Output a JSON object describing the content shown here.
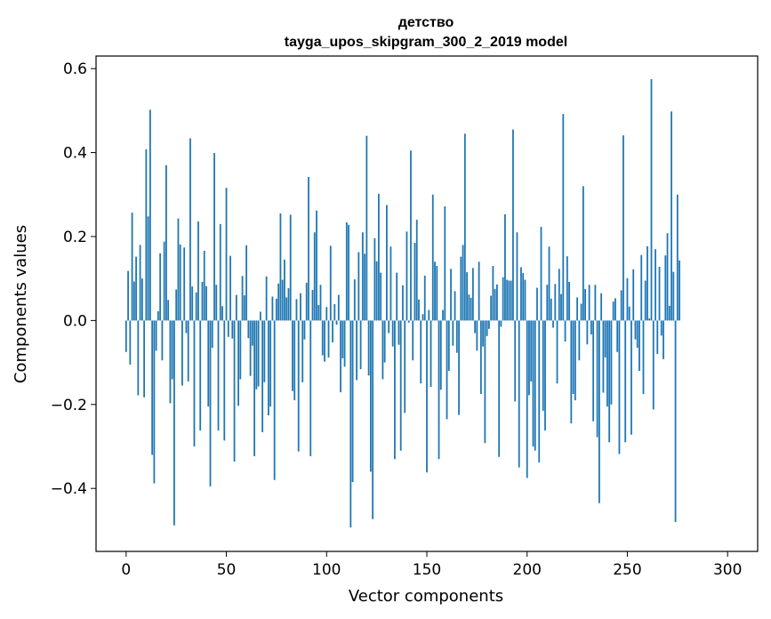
{
  "chart_data": {
    "type": "bar",
    "title_line1": "детство",
    "title_line2": "tayga_upos_skipgram_300_2_2019 model",
    "xlabel": "Vector components",
    "ylabel": "Components values",
    "xlim": [
      -15,
      315
    ],
    "ylim": [
      -0.55,
      0.63
    ],
    "xticks": [
      0,
      50,
      100,
      150,
      200,
      250,
      300
    ],
    "yticks": [
      -0.4,
      -0.2,
      0.0,
      0.2,
      0.4,
      0.6
    ],
    "ytick_labels": [
      "−0.4",
      "−0.2",
      "0.0",
      "0.2",
      "0.4",
      "0.6"
    ],
    "xtick_labels": [
      "0",
      "50",
      "100",
      "150",
      "200",
      "250",
      "300"
    ],
    "bar_color": "#1f77b4",
    "values": [
      -0.075,
      0.118,
      -0.105,
      0.257,
      0.093,
      0.152,
      -0.178,
      0.18,
      0.1,
      -0.183,
      0.408,
      0.248,
      0.502,
      -0.32,
      -0.388,
      -0.072,
      0.022,
      0.16,
      -0.095,
      0.188,
      0.37,
      0.049,
      -0.197,
      -0.14,
      -0.488,
      0.074,
      0.243,
      0.181,
      -0.155,
      0.174,
      -0.03,
      -0.145,
      0.434,
      0.081,
      -0.3,
      0.067,
      0.236,
      -0.262,
      0.092,
      0.166,
      0.082,
      -0.205,
      -0.395,
      -0.065,
      0.399,
      0.085,
      -0.262,
      0.23,
      0.034,
      -0.286,
      0.316,
      -0.039,
      0.154,
      -0.043,
      -0.336,
      0.061,
      -0.203,
      -0.14,
      0.106,
      0.06,
      0.179,
      -0.042,
      -0.132,
      -0.06,
      -0.323,
      -0.164,
      -0.157,
      0.021,
      -0.266,
      -0.147,
      0.105,
      -0.226,
      -0.205,
      0.057,
      -0.38,
      0.052,
      0.088,
      0.255,
      0.097,
      0.145,
      0.055,
      0.077,
      0.252,
      -0.168,
      -0.19,
      0.051,
      -0.312,
      0.065,
      -0.147,
      -0.045,
      0.09,
      0.342,
      -0.323,
      0.073,
      0.21,
      0.262,
      0.037,
      0.085,
      -0.083,
      -0.098,
      0.032,
      -0.088,
      0.178,
      -0.052,
      0.039,
      -0.01,
      0.061,
      -0.171,
      -0.09,
      -0.11,
      0.234,
      0.228,
      -0.493,
      -0.385,
      0.098,
      -0.142,
      0.163,
      -0.116,
      0.21,
      0.159,
      0.44,
      -0.131,
      -0.36,
      -0.473,
      0.196,
      0.141,
      0.302,
      0.114,
      -0.14,
      -0.1,
      0.275,
      -0.03,
      0.176,
      -0.062,
      -0.33,
      0.114,
      -0.058,
      -0.31,
      0.084,
      -0.22,
      0.212,
      -0.005,
      0.405,
      -0.095,
      0.185,
      0.24,
      0.05,
      -0.15,
      0.015,
      0.107,
      -0.362,
      0.025,
      -0.158,
      0.3,
      0.14,
      0.13,
      -0.33,
      -0.165,
      0.025,
      0.272,
      -0.235,
      -0.12,
      0.123,
      -0.06,
      0.07,
      -0.077,
      -0.225,
      0.152,
      0.18,
      0.445,
      0.115,
      0.062,
      0.054,
      0.125,
      -0.03,
      -0.072,
      0.14,
      -0.175,
      -0.062,
      -0.292,
      -0.037,
      -0.02,
      0.059,
      0.13,
      0.075,
      0.086,
      -0.325,
      -0.015,
      0.103,
      0.253,
      0.097,
      0.095,
      0.095,
      0.455,
      -0.193,
      0.21,
      -0.35,
      0.127,
      0.113,
      0.097,
      -0.375,
      -0.178,
      -0.145,
      -0.3,
      -0.31,
      0.078,
      -0.338,
      0.223,
      -0.215,
      -0.262,
      0.085,
      0.176,
      0.052,
      -0.017,
      0.087,
      -0.15,
      0.123,
      0.063,
      0.492,
      -0.05,
      0.153,
      0.092,
      -0.245,
      -0.175,
      -0.19,
      0.055,
      -0.095,
      0.04,
      0.32,
      0.075,
      -0.057,
      0.085,
      -0.033,
      -0.24,
      0.085,
      -0.278,
      -0.435,
      0.065,
      -0.172,
      -0.088,
      -0.205,
      -0.29,
      -0.2,
      0.045,
      0.053,
      -0.075,
      -0.318,
      0.072,
      0.441,
      -0.29,
      0.101,
      0.033,
      -0.272,
      0.122,
      -0.045,
      -0.065,
      -0.12,
      0.156,
      -0.175,
      0.095,
      0.177,
      0.005,
      0.575,
      -0.212,
      0.17,
      -0.08,
      0.128,
      -0.036,
      -0.092,
      0.155,
      0.208,
      0.035,
      0.498,
      0.116,
      -0.48,
      0.3,
      0.143
    ]
  }
}
